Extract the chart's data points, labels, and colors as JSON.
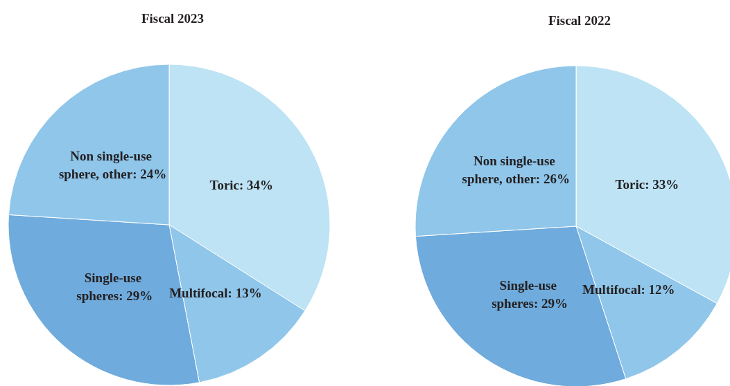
{
  "chart_data": [
    {
      "type": "pie",
      "title": "Fiscal 2023",
      "categories": [
        "Toric",
        "Multifocal",
        "Single-use spheres",
        "Non single-use sphere, other"
      ],
      "values": [
        34,
        13,
        29,
        24
      ],
      "colors": [
        "#bde3f5",
        "#8fc6ea",
        "#6fabdc",
        "#8fc6ea"
      ],
      "value_labels": [
        "34%",
        "13%",
        "29%",
        "24%"
      ]
    },
    {
      "type": "pie",
      "title": "Fiscal 2022",
      "categories": [
        "Toric",
        "Multifocal",
        "Single-use spheres",
        "Non single-use sphere, other"
      ],
      "values": [
        33,
        12,
        29,
        26
      ],
      "colors": [
        "#bde3f5",
        "#8fc6ea",
        "#6fabdc",
        "#8fc6ea"
      ],
      "value_labels": [
        "33%",
        "12%",
        "29%",
        "26%"
      ]
    }
  ]
}
